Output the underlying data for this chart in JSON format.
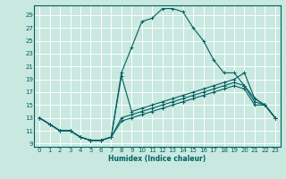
{
  "xlabel": "Humidex (Indice chaleur)",
  "bg_color": "#c8e8e0",
  "line_color": "#006060",
  "grid_color": "#ffffff",
  "xlim": [
    -0.5,
    23.5
  ],
  "ylim": [
    8.5,
    30.5
  ],
  "yticks": [
    9,
    11,
    13,
    15,
    17,
    19,
    21,
    23,
    25,
    27,
    29
  ],
  "xticks": [
    0,
    1,
    2,
    3,
    4,
    5,
    6,
    7,
    8,
    9,
    10,
    11,
    12,
    13,
    14,
    15,
    16,
    17,
    18,
    19,
    20,
    21,
    22,
    23
  ],
  "lines": [
    {
      "x": [
        0,
        1,
        2,
        3,
        4,
        5,
        6,
        7,
        8,
        9,
        10,
        11,
        12,
        13,
        14,
        15,
        16,
        17,
        18,
        19,
        20,
        21,
        22,
        23
      ],
      "y": [
        13,
        12,
        11,
        11,
        10,
        9.5,
        9.5,
        10,
        20,
        24,
        28,
        28.5,
        30,
        30,
        29.5,
        27,
        25,
        22,
        20,
        20,
        18,
        16,
        15,
        13
      ]
    },
    {
      "x": [
        0,
        1,
        2,
        3,
        4,
        5,
        6,
        7,
        8,
        9,
        10,
        11,
        12,
        13,
        14,
        15,
        16,
        17,
        18,
        19,
        20,
        21,
        22,
        23
      ],
      "y": [
        13,
        12,
        11,
        11,
        10,
        9.5,
        9.5,
        10,
        19.5,
        14,
        14.5,
        15,
        15.5,
        16,
        16.5,
        17,
        17.5,
        18,
        18.5,
        19,
        20,
        16,
        15,
        13
      ]
    },
    {
      "x": [
        0,
        1,
        2,
        3,
        4,
        5,
        6,
        7,
        8,
        9,
        10,
        11,
        12,
        13,
        14,
        15,
        16,
        17,
        18,
        19,
        20,
        21,
        22,
        23
      ],
      "y": [
        13,
        12,
        11,
        11,
        10,
        9.5,
        9.5,
        10,
        13,
        13.5,
        14,
        14.5,
        15,
        15.5,
        16,
        16.5,
        17,
        17.5,
        18,
        18.5,
        18,
        15.5,
        15,
        13
      ]
    },
    {
      "x": [
        0,
        1,
        2,
        3,
        4,
        5,
        6,
        7,
        8,
        9,
        10,
        11,
        12,
        13,
        14,
        15,
        16,
        17,
        18,
        19,
        20,
        21,
        22,
        23
      ],
      "y": [
        13,
        12,
        11,
        11,
        10,
        9.5,
        9.5,
        10,
        12.5,
        13,
        13.5,
        14,
        14.5,
        15,
        15.5,
        16,
        16.5,
        17,
        17.5,
        18,
        17.5,
        15,
        15,
        13
      ]
    }
  ]
}
